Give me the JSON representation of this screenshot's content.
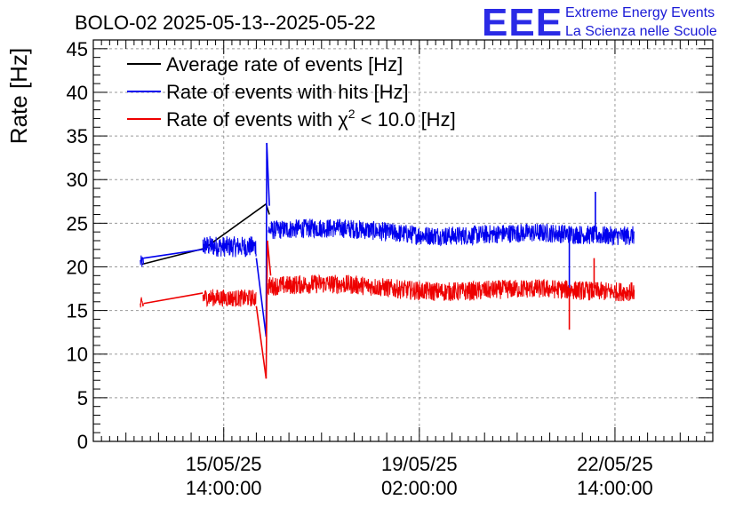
{
  "title": "BOLO-02 2025-05-13--2025-05-22",
  "logo": {
    "mark": "EEE",
    "line1": "Extreme Energy Events",
    "line2": "La Scienza nelle Scuole",
    "color": "#2222dd"
  },
  "chart_data": {
    "type": "line",
    "ylabel": "Rate [Hz]",
    "xlabel": "",
    "ylim": [
      0,
      46
    ],
    "y_ticks": [
      0,
      5,
      10,
      15,
      20,
      25,
      30,
      35,
      40,
      45
    ],
    "xlim_days": [
      0,
      9.5
    ],
    "x_ticks": [
      {
        "day": 2.0,
        "date": "15/05/25",
        "time": "14:00:00"
      },
      {
        "day": 5.0,
        "date": "19/05/25",
        "time": "02:00:00"
      },
      {
        "day": 8.0,
        "date": "22/05/25",
        "time": "14:00:00"
      }
    ],
    "grid": true,
    "legend_position": "top-left",
    "series": [
      {
        "name": "Average rate of events [Hz]",
        "color": "#000000",
        "points": [
          [
            0.75,
            20.3
          ],
          [
            1.7,
            22.1
          ],
          [
            2.65,
            27.2
          ],
          [
            2.7,
            26.0
          ]
        ]
      },
      {
        "name": "Rate of events with hits [Hz]",
        "color": "#0000ee",
        "segments": [
          {
            "x0": 0.72,
            "x1": 0.77,
            "base": 20.1,
            "noise": 0.8
          },
          {
            "x0": 1.68,
            "x1": 2.5,
            "base": 22.2,
            "noise": 1.2
          },
          {
            "x0": 2.68,
            "x1": 8.3,
            "base": 24.0,
            "noise": 1.1
          }
        ],
        "connectors": [
          [
            0.77,
            21.0,
            1.68,
            22.0
          ],
          [
            2.5,
            21.0,
            2.65,
            12.0
          ],
          [
            2.65,
            12.0,
            2.66,
            34.2
          ],
          [
            2.66,
            34.2,
            2.7,
            27.0
          ]
        ],
        "spikes": [
          [
            7.3,
            16.5
          ],
          [
            7.7,
            28.6
          ]
        ]
      },
      {
        "name": "Rate of events with χ² < 10.0 [Hz]",
        "label_parts": {
          "before": "Rate of events with χ",
          "sup": "2",
          "after": " < 10.0 [Hz]"
        },
        "color": "#ee0000",
        "segments": [
          {
            "x0": 0.72,
            "x1": 0.77,
            "base": 15.2,
            "noise": 0.9
          },
          {
            "x0": 1.68,
            "x1": 2.5,
            "base": 16.3,
            "noise": 1.0
          },
          {
            "x0": 2.68,
            "x1": 8.3,
            "base": 17.6,
            "noise": 1.1
          }
        ],
        "connectors": [
          [
            0.77,
            15.8,
            1.68,
            17.0
          ],
          [
            2.5,
            15.5,
            2.65,
            7.2
          ],
          [
            2.65,
            7.2,
            2.67,
            23.0
          ],
          [
            2.67,
            23.0,
            2.72,
            19.0
          ]
        ],
        "spikes": [
          [
            7.3,
            12.8
          ],
          [
            7.68,
            21.0
          ]
        ]
      }
    ]
  }
}
